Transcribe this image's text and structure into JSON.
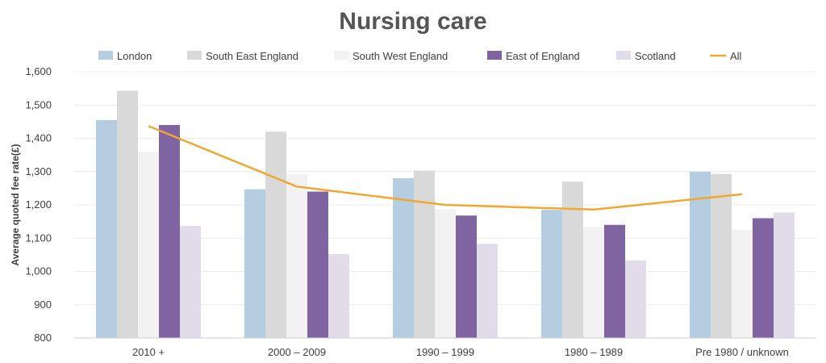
{
  "chart_data": {
    "type": "bar",
    "title": "Nursing care",
    "xlabel": "",
    "ylabel": "Average quoted fee rate(£)",
    "ylim": [
      800,
      1600
    ],
    "yticks": [
      "800",
      "900",
      "1,000",
      "1,100",
      "1,200",
      "1,300",
      "1,400",
      "1,500",
      "1,600"
    ],
    "ytick_values": [
      800,
      900,
      1000,
      1100,
      1200,
      1300,
      1400,
      1500,
      1600
    ],
    "grid": true,
    "legend_position": "top",
    "categories": [
      "2010 +",
      "2000 – 2009",
      "1990 – 1999",
      "1980 – 1989",
      "Pre 1980 / unknown"
    ],
    "series": [
      {
        "name": "London",
        "type": "bar",
        "color": "#b4cde0",
        "values": [
          1455,
          1247,
          1280,
          1185,
          1300
        ]
      },
      {
        "name": "South East England",
        "type": "bar",
        "color": "#d9d9d9",
        "values": [
          1543,
          1420,
          1303,
          1270,
          1293
        ]
      },
      {
        "name": "South West England",
        "type": "bar",
        "color": "#f2f2f2",
        "values": [
          1360,
          1293,
          1187,
          1133,
          1125
        ]
      },
      {
        "name": "East of England",
        "type": "bar",
        "color": "#8064a2",
        "values": [
          1440,
          1240,
          1168,
          1140,
          1160
        ]
      },
      {
        "name": "Scotland",
        "type": "bar",
        "color": "#e2dcea",
        "values": [
          1137,
          1052,
          1083,
          1033,
          1177
        ]
      },
      {
        "name": "All",
        "type": "line",
        "color": "#f0a830",
        "values": [
          1437,
          1255,
          1200,
          1186,
          1232
        ]
      }
    ]
  }
}
